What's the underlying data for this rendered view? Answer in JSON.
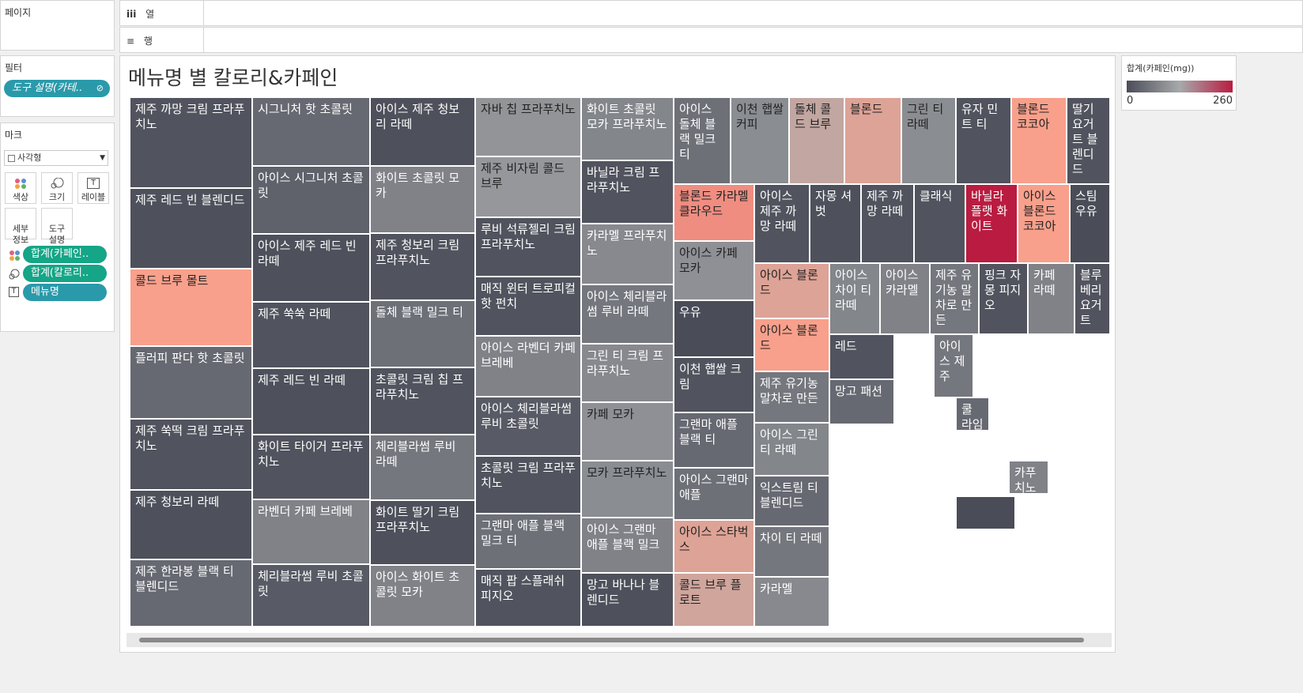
{
  "pages_shelf": {
    "title": "페이지"
  },
  "columns_shelf": {
    "icon": "iii",
    "label": "열"
  },
  "rows_shelf": {
    "icon": "≡",
    "label": "행"
  },
  "filters": {
    "title": "필터",
    "pill": "도구 설명(카테.."
  },
  "marks": {
    "title": "마크",
    "mark_type": "사각형",
    "buttons": [
      {
        "label": "색상",
        "icon": "color-icon"
      },
      {
        "label": "크기",
        "icon": "size-icon"
      },
      {
        "label": "레이블",
        "icon": "label-icon"
      },
      {
        "label": "세부\n정보",
        "icon": "detail-icon"
      },
      {
        "label": "도구\n설명",
        "icon": "tooltip-icon"
      }
    ],
    "pills": [
      {
        "label": "합계(카페인..",
        "icon": "color-icon"
      },
      {
        "label": "합계(칼로리..",
        "icon": "size-icon"
      },
      {
        "label": "메뉴명",
        "icon": "label-icon"
      }
    ]
  },
  "viz": {
    "title": "메뉴명 별 칼로리&카페인"
  },
  "legend": {
    "title": "합계(카페인(mg))",
    "min": "0",
    "max": "260",
    "color_low": "#4a4d58",
    "color_mid": "#a7a9ab",
    "color_high": "#b91c40"
  },
  "treemap": {
    "cells": [
      {
        "label": "제주 까망 크림 프라푸치노",
        "caffeine": 10
      },
      {
        "label": "제주 레드 빈 블렌디드",
        "caffeine": 5
      },
      {
        "label": "콜드 브루 몰트",
        "caffeine": 190
      },
      {
        "label": "플러피 판다 핫 초콜릿",
        "caffeine": 40
      },
      {
        "label": "제주 쑥떡 크림 프라푸치노",
        "caffeine": 10
      },
      {
        "label": "제주 청보리 라떼",
        "caffeine": 5
      },
      {
        "label": "제주 한라봉 블랙 티 블렌디드",
        "caffeine": 40
      },
      {
        "label": "시그니처 핫 초콜릿",
        "caffeine": 40
      },
      {
        "label": "아이스 시그니처 초콜릿",
        "caffeine": 30
      },
      {
        "label": "아이스 제주 레드 빈 라떼",
        "caffeine": 5
      },
      {
        "label": "제주 쑥쑥 라떼",
        "caffeine": 10
      },
      {
        "label": "제주 레드 빈 라떼",
        "caffeine": 5
      },
      {
        "label": "화이트 타이거 프라푸치노",
        "caffeine": 10
      },
      {
        "label": "라벤더 카페 브레베",
        "caffeine": 75
      },
      {
        "label": "체리블라썸 루비 초콜릿",
        "caffeine": 20
      },
      {
        "label": "아이스 제주 청보리 라떼",
        "caffeine": 5
      },
      {
        "label": "화이트 초콜릿 모카",
        "caffeine": 75
      },
      {
        "label": "제주 청보리 크림 프라푸치노",
        "caffeine": 10
      },
      {
        "label": "돌체 블랙 밀크 티",
        "caffeine": 50
      },
      {
        "label": "초콜릿 크림 칩 프라푸치노",
        "caffeine": 10
      },
      {
        "label": "체리블라썸 루비 라떼",
        "caffeine": 60
      },
      {
        "label": "화이트 딸기 크림 프라푸치노",
        "caffeine": 5
      },
      {
        "label": "아이스 화이트 초콜릿 모카",
        "caffeine": 75
      },
      {
        "label": "자바 칩 프라푸치노",
        "caffeine": 100
      },
      {
        "label": "제주 비자림 콜드 브루",
        "caffeine": 105
      },
      {
        "label": "루비 석류젤리 크림 프라푸치노",
        "caffeine": 10
      },
      {
        "label": "매직 윈터 트로피컬 핫 펀치",
        "caffeine": 10
      },
      {
        "label": "아이스 라벤더 카페 브레베",
        "caffeine": 75
      },
      {
        "label": "아이스 체리블라썸 루비 초콜릿",
        "caffeine": 20
      },
      {
        "label": "초콜릿 크림 프라푸치노",
        "caffeine": 10
      },
      {
        "label": "그랜마 애플 블랙 밀크 티",
        "caffeine": 50
      },
      {
        "label": "매직 팝 스플래쉬 피지오",
        "caffeine": 10
      },
      {
        "label": "화이트 초콜릿 모카 프라푸치노",
        "caffeine": 80
      },
      {
        "label": "바닐라 크림 프라푸치노",
        "caffeine": 10
      },
      {
        "label": "카라멜 프라푸치노",
        "caffeine": 85
      },
      {
        "label": "아이스 체리블라썸 루비 라떼",
        "caffeine": 60
      },
      {
        "label": "그린 티 크림 프라푸치노",
        "caffeine": 85
      },
      {
        "label": "카페 모카",
        "caffeine": 95
      },
      {
        "label": "모카 프라푸치노",
        "caffeine": 90
      },
      {
        "label": "아이스 그랜마 애플 블랙 밀크",
        "caffeine": 75
      },
      {
        "label": "망고 바나나 블렌디드",
        "caffeine": 5
      },
      {
        "label": "아이스 돌체 블랙 밀크 티",
        "caffeine": 50
      },
      {
        "label": "이천 햅쌀 커피",
        "caffeine": 90
      },
      {
        "label": "돌체 콜드 브루",
        "caffeine": 150
      },
      {
        "label": "블론드",
        "caffeine": 170
      },
      {
        "label": "그린 티 라떼",
        "caffeine": 90
      },
      {
        "label": "유자 민트 티",
        "caffeine": 10
      },
      {
        "label": "블론드 코코아",
        "caffeine": 190
      },
      {
        "label": "딸기 요거트 블렌디드",
        "caffeine": 10
      },
      {
        "label": "블론드 카라멜 클라우드",
        "caffeine": 200
      },
      {
        "label": "아이스 카페 모카",
        "caffeine": 95
      },
      {
        "label": "우유",
        "caffeine": 0
      },
      {
        "label": "이천 햅쌀 크림",
        "caffeine": 10
      },
      {
        "label": "그랜마 애플 블랙 티",
        "caffeine": 40
      },
      {
        "label": "아이스 그랜마 애플",
        "caffeine": 50
      },
      {
        "label": "아이스 스타벅스",
        "caffeine": 170
      },
      {
        "label": "콜드 브루 플로트",
        "caffeine": 160
      },
      {
        "label": "아이스 제주 까망 라떼",
        "caffeine": 10
      },
      {
        "label": "자몽 셔벗",
        "caffeine": 5
      },
      {
        "label": "제주 까망 라떼",
        "caffeine": 10
      },
      {
        "label": "클래식",
        "caffeine": 10
      },
      {
        "label": "바닐라 플랫 화이트",
        "caffeine": 260
      },
      {
        "label": "아이스 블론드 코코아",
        "caffeine": 190
      },
      {
        "label": "스팀 우유",
        "caffeine": 0
      },
      {
        "label": "아이스 블론드",
        "caffeine": 170
      },
      {
        "label": "아이스 블론드",
        "caffeine": 190
      },
      {
        "label": "제주 유기농 말차로 만든",
        "caffeine": 60
      },
      {
        "label": "아이스 그린 티 라떼",
        "caffeine": 80
      },
      {
        "label": "익스트림 티 블렌디드",
        "caffeine": 40
      },
      {
        "label": "차이 티 라떼",
        "caffeine": 60
      },
      {
        "label": "카라멜",
        "caffeine": 85
      },
      {
        "label": "아이스 차이 티 라떼",
        "caffeine": 80
      },
      {
        "label": "아이스 카라멜",
        "caffeine": 75
      },
      {
        "label": "제주 유기농 말차로 만든",
        "caffeine": 60
      },
      {
        "label": "핑크 자몽 피지오",
        "caffeine": 10
      },
      {
        "label": "카페 라떼",
        "caffeine": 75
      },
      {
        "label": "블루베리 요거트",
        "caffeine": 10
      },
      {
        "label": "레드",
        "caffeine": 10
      },
      {
        "label": "아이스 제주",
        "caffeine": 60
      },
      {
        "label": "망고 패션",
        "caffeine": 40
      },
      {
        "label": "쿨 라임",
        "caffeine": 40
      },
      {
        "label": "카푸치노",
        "caffeine": 75
      },
      {
        "label": "",
        "caffeine": 0
      }
    ]
  }
}
